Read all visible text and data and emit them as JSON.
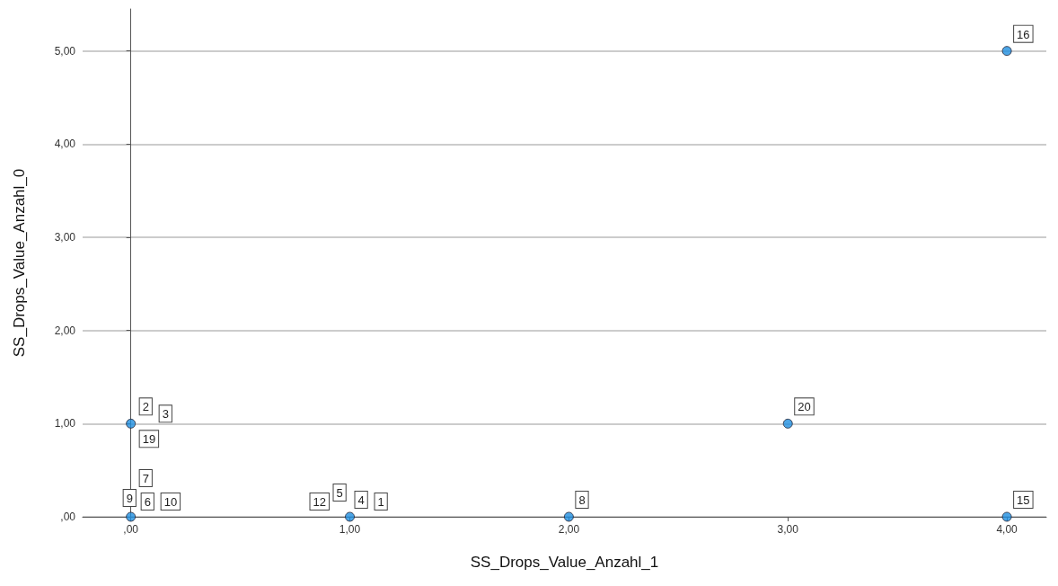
{
  "chart_data": {
    "type": "scatter",
    "xlabel": "SS_Drops_Value_Anzahl_1",
    "ylabel": "SS_Drops_Value_Anzahl_0",
    "x": [
      0,
      0,
      1,
      2,
      3,
      4,
      4
    ],
    "series": [
      {
        "color": "#1f8ee0",
        "values": [
          1,
          0,
          0,
          0,
          1,
          5,
          0
        ]
      }
    ],
    "xlim": [
      -0.22,
      4.18
    ],
    "ylim": [
      0,
      5.45
    ],
    "xticks": [
      {
        "value": 0,
        "label": ",00"
      },
      {
        "value": 1,
        "label": "1,00"
      },
      {
        "value": 2,
        "label": "2,00"
      },
      {
        "value": 3,
        "label": "3,00"
      },
      {
        "value": 4,
        "label": "4,00"
      }
    ],
    "yticks": [
      {
        "value": 0,
        "label": ",00"
      },
      {
        "value": 1,
        "label": "1,00"
      },
      {
        "value": 2,
        "label": "2,00"
      },
      {
        "value": 3,
        "label": "3,00"
      },
      {
        "value": 4,
        "label": "4,00"
      },
      {
        "value": 5,
        "label": "5,00"
      }
    ],
    "grid": "y",
    "marker": "circle",
    "annotations": [
      {
        "text": "2",
        "x": 0,
        "y": 1
      },
      {
        "text": "3",
        "x": 0,
        "y": 1
      },
      {
        "text": "19",
        "x": 0,
        "y": 1
      },
      {
        "text": "7",
        "x": 0,
        "y": 0
      },
      {
        "text": "9",
        "x": 0,
        "y": 0
      },
      {
        "text": "6",
        "x": 0,
        "y": 0
      },
      {
        "text": "10",
        "x": 0,
        "y": 0
      },
      {
        "text": "12",
        "x": 1,
        "y": 0
      },
      {
        "text": "5",
        "x": 1,
        "y": 0
      },
      {
        "text": "4",
        "x": 1,
        "y": 0
      },
      {
        "text": "1",
        "x": 1,
        "y": 0
      },
      {
        "text": "8",
        "x": 2,
        "y": 0
      },
      {
        "text": "20",
        "x": 3,
        "y": 1
      },
      {
        "text": "16",
        "x": 4,
        "y": 5
      },
      {
        "text": "15",
        "x": 4,
        "y": 0
      }
    ]
  }
}
